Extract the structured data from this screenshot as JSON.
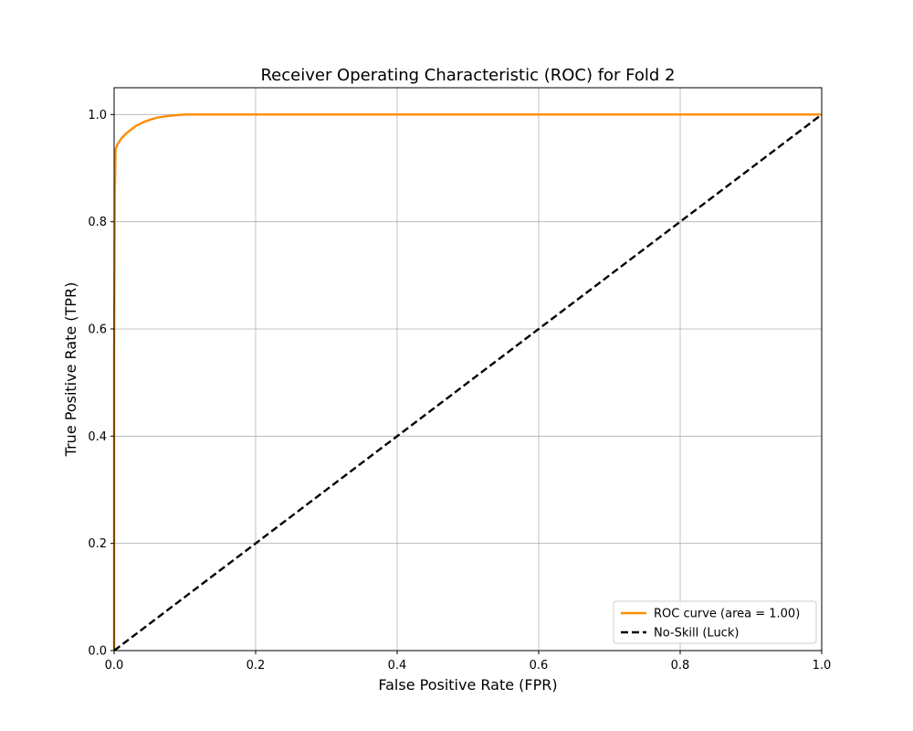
{
  "chart_data": {
    "type": "line",
    "title": "Receiver Operating Characteristic (ROC) for Fold 2",
    "xlabel": "False Positive Rate (FPR)",
    "ylabel": "True Positive Rate (TPR)",
    "xlim": [
      0.0,
      1.05
    ],
    "ylim": [
      0.0,
      1.05
    ],
    "x_plot_range": [
      0.0,
      1.0
    ],
    "y_plot_range": [
      0.0,
      1.05
    ],
    "x_ticks": [
      "0.0",
      "0.2",
      "0.4",
      "0.6",
      "0.8",
      "1.0"
    ],
    "y_ticks": [
      "0.0",
      "0.2",
      "0.4",
      "0.6",
      "0.8",
      "1.0"
    ],
    "grid": true,
    "legend_position": "lower-right",
    "series": [
      {
        "name": "ROC curve (area = 1.00)",
        "color": "#ff8c00",
        "style": "solid",
        "points": [
          [
            0.0,
            0.0
          ],
          [
            0.0,
            0.55
          ],
          [
            0.001,
            0.85
          ],
          [
            0.002,
            0.935
          ],
          [
            0.005,
            0.945
          ],
          [
            0.01,
            0.955
          ],
          [
            0.015,
            0.962
          ],
          [
            0.02,
            0.968
          ],
          [
            0.03,
            0.978
          ],
          [
            0.04,
            0.985
          ],
          [
            0.05,
            0.99
          ],
          [
            0.06,
            0.994
          ],
          [
            0.07,
            0.996
          ],
          [
            0.08,
            0.998
          ],
          [
            0.09,
            0.999
          ],
          [
            0.1,
            1.0
          ],
          [
            0.2,
            1.0
          ],
          [
            0.4,
            1.0
          ],
          [
            0.6,
            1.0
          ],
          [
            0.8,
            1.0
          ],
          [
            1.0,
            1.0
          ]
        ]
      },
      {
        "name": "No-Skill (Luck)",
        "color": "#000000",
        "style": "dashed",
        "points": [
          [
            0.0,
            0.0
          ],
          [
            1.0,
            1.0
          ]
        ]
      }
    ]
  }
}
